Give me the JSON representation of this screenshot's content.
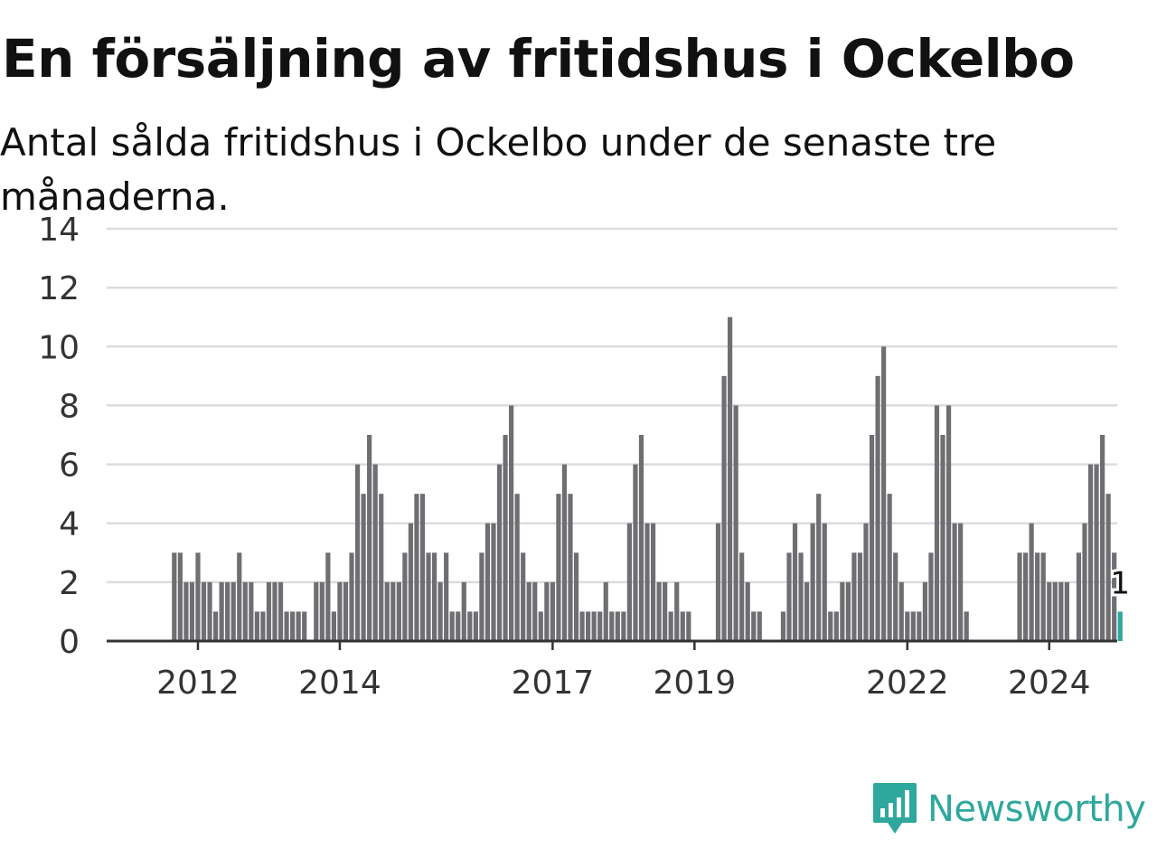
{
  "title": "En försäljning av fritidshus i Ockelbo",
  "subtitle": "Antal sålda fritidshus i Ockelbo under de senaste tre månaderna.",
  "brand": {
    "name": "Newsworthy",
    "icon": "bar-chart-speech-icon",
    "color": "#2ea89d"
  },
  "chart_data": {
    "type": "bar",
    "title": "En försäljning av fritidshus i Ockelbo",
    "subtitle": "Antal sålda fritidshus i Ockelbo under de senaste tre månaderna.",
    "xlabel": "",
    "ylabel": "",
    "ylim": [
      0,
      14
    ],
    "y_ticks": [
      0,
      2,
      4,
      6,
      8,
      10,
      12,
      14
    ],
    "x_ticks": [
      "2012",
      "2014",
      "2017",
      "2019",
      "2022",
      "2024"
    ],
    "grid": true,
    "bar_color": "#6f6f73",
    "highlight_color": "#2ea89d",
    "highlight_label": "1",
    "series": [
      {
        "values": [
          null,
          null,
          null,
          null,
          null,
          null,
          null,
          null,
          3,
          3,
          2,
          2,
          3,
          2,
          2,
          1,
          2,
          2,
          2,
          3,
          2,
          2,
          1,
          1,
          2,
          2,
          2,
          1,
          1,
          1,
          1,
          null,
          2,
          2,
          3,
          1,
          2,
          2,
          3,
          6,
          5,
          7,
          6,
          5,
          2,
          2,
          2,
          3,
          4,
          5,
          5,
          3,
          3,
          2,
          3,
          1,
          1,
          2,
          1,
          1,
          3,
          4,
          4,
          6,
          7,
          8,
          5,
          3,
          2,
          2,
          1,
          2,
          2,
          5,
          6,
          5,
          3,
          1,
          1,
          1,
          1,
          2,
          1,
          1,
          1,
          4,
          6,
          7,
          4,
          4,
          2,
          2,
          1,
          2,
          1,
          1,
          null,
          null,
          null,
          null,
          4,
          9,
          11,
          8,
          3,
          2,
          1,
          1,
          null,
          null,
          null,
          1,
          3,
          4,
          3,
          2,
          4,
          5,
          4,
          1,
          1,
          2,
          2,
          3,
          3,
          4,
          7,
          9,
          10,
          5,
          3,
          2,
          1,
          1,
          1,
          2,
          3,
          8,
          7,
          8,
          4,
          4,
          1,
          null,
          null,
          null,
          null,
          null,
          null,
          null,
          null,
          3,
          3,
          4,
          3,
          3,
          2,
          2,
          2,
          2,
          null,
          3,
          4,
          6,
          6,
          7,
          5,
          3,
          1
        ]
      }
    ]
  }
}
